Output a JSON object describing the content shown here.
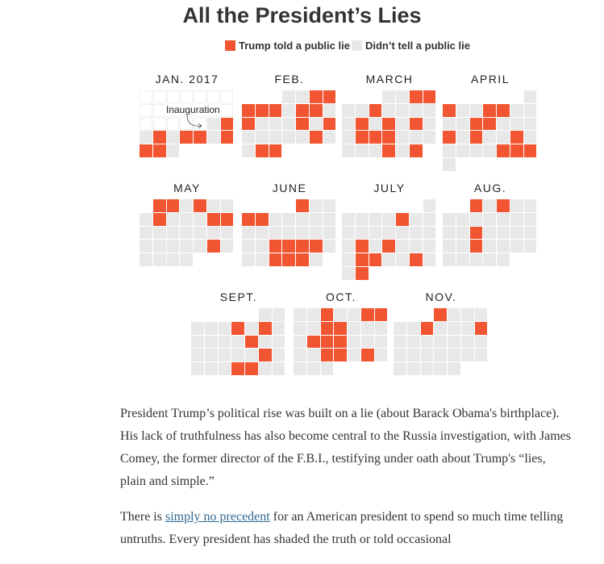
{
  "chart_data": {
    "type": "heatmap",
    "title": "All the President’s Lies",
    "legend": [
      {
        "label": "Trump told a public lie",
        "color": "#f15532"
      },
      {
        "label": "Didn’t tell a public lie",
        "color": "#e8e8e8"
      }
    ],
    "annotation": "Inauguration",
    "year": 2017,
    "months": [
      {
        "label": "JAN. 2017",
        "days": 31,
        "start_weekday": 0,
        "first_tracked_day": 20,
        "lie_days": [
          21,
          23,
          25,
          26,
          28,
          29,
          30
        ]
      },
      {
        "label": "FEB.",
        "days": 28,
        "start_weekday": 3,
        "first_tracked_day": 1,
        "lie_days": [
          3,
          4,
          5,
          6,
          7,
          9,
          10,
          12,
          16,
          18,
          24,
          27,
          28
        ]
      },
      {
        "label": "MARCH",
        "days": 31,
        "start_weekday": 3,
        "first_tracked_day": 1,
        "lie_days": [
          3,
          4,
          7,
          13,
          15,
          17,
          20,
          21,
          22,
          29,
          31
        ]
      },
      {
        "label": "APRIL",
        "days": 30,
        "start_weekday": 6,
        "first_tracked_day": 1,
        "lie_days": [
          2,
          5,
          6,
          11,
          12,
          16,
          18,
          21,
          27,
          28,
          29
        ]
      },
      {
        "label": "MAY",
        "days": 31,
        "start_weekday": 1,
        "first_tracked_day": 1,
        "lie_days": [
          1,
          2,
          4,
          8,
          12,
          13,
          26
        ]
      },
      {
        "label": "JUNE",
        "days": 30,
        "start_weekday": 4,
        "first_tracked_day": 1,
        "lie_days": [
          1,
          4,
          5,
          20,
          21,
          22,
          23,
          27,
          28,
          29
        ]
      },
      {
        "label": "JULY",
        "days": 31,
        "start_weekday": 6,
        "first_tracked_day": 1,
        "lie_days": [
          6,
          17,
          19,
          24,
          25,
          28,
          31
        ]
      },
      {
        "label": "AUG.",
        "days": 31,
        "start_weekday": 2,
        "first_tracked_day": 1,
        "lie_days": [
          1,
          3,
          15,
          22
        ]
      },
      {
        "label": "SEPT.",
        "days": 30,
        "start_weekday": 5,
        "first_tracked_day": 1,
        "lie_days": [
          6,
          8,
          14,
          22,
          27,
          28
        ]
      },
      {
        "label": "OCT.",
        "days": 31,
        "start_weekday": 0,
        "first_tracked_day": 1,
        "lie_days": [
          3,
          6,
          7,
          10,
          11,
          16,
          17,
          18,
          24,
          25,
          27
        ]
      },
      {
        "label": "NOV.",
        "days": 30,
        "start_weekday": 3,
        "first_tracked_day": 1,
        "lie_days": [
          1,
          7,
          11
        ]
      }
    ]
  },
  "article": {
    "p1": "President Trump’s political rise was built on a lie (about Barack Obama's birthplace). His lack of truthfulness has also become central to the Russia investigation, with James Comey, the former director of the F.B.I., testifying under oath about Trump's “lies, plain and simple.”",
    "p2_before": "There is ",
    "p2_link": "simply no precedent",
    "p2_after": " for an American president to spend so much time telling untruths. Every president has shaded the truth or told occasional"
  }
}
